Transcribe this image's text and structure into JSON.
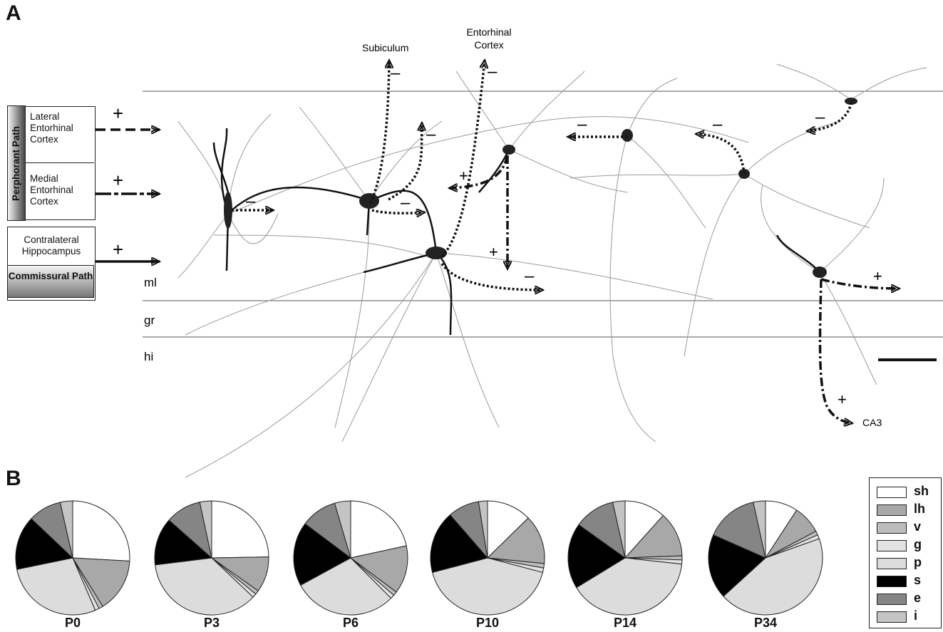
{
  "panel_a": {
    "letter": "A",
    "perforant_title": "Perphorant Path",
    "lateral": "Lateral Entorhinal Cortex",
    "medial": "Medial Entorhinal Cortex",
    "contralateral": "Contralateral Hippocampus",
    "commissural": "Commissural Path",
    "layers": [
      "ml",
      "gr",
      "hi"
    ],
    "targets": {
      "subiculum": "Subiculum",
      "entorhinal": "Entorhinal Cortex",
      "ca3": "CA3"
    },
    "plus": "+",
    "minus": "–"
  },
  "panel_b": {
    "letter": "B",
    "legend": [
      {
        "key": "sh",
        "color": "#ffffff"
      },
      {
        "key": "lh",
        "color": "#a8a8a8"
      },
      {
        "key": "v",
        "color": "#bdbdbd"
      },
      {
        "key": "g",
        "color": "#e2e2e2"
      },
      {
        "key": "p",
        "color": "#dcdcdc"
      },
      {
        "key": "s",
        "color": "#000000"
      },
      {
        "key": "e",
        "color": "#858585"
      },
      {
        "key": "i",
        "color": "#c4c4c4"
      }
    ]
  },
  "chart_data": {
    "type": "pie",
    "categories": [
      "sh",
      "lh",
      "v",
      "g",
      "p",
      "s",
      "e",
      "i"
    ],
    "series": [
      {
        "name": "P0",
        "values": [
          22,
          13,
          1,
          1,
          24,
          13,
          8,
          3
        ]
      },
      {
        "name": "P3",
        "values": [
          22,
          9,
          1,
          1,
          32,
          12,
          9,
          3
        ]
      },
      {
        "name": "P6",
        "values": [
          19,
          12,
          1,
          1,
          26,
          16,
          9,
          4
        ]
      },
      {
        "name": "P10",
        "values": [
          10,
          11,
          1,
          1,
          33,
          14,
          7,
          2
        ]
      },
      {
        "name": "P14",
        "values": [
          10,
          11,
          1,
          1,
          34,
          16,
          10,
          3
        ]
      },
      {
        "name": "P34",
        "values": [
          8,
          7,
          1,
          1,
          38,
          16,
          13,
          3
        ]
      }
    ]
  }
}
